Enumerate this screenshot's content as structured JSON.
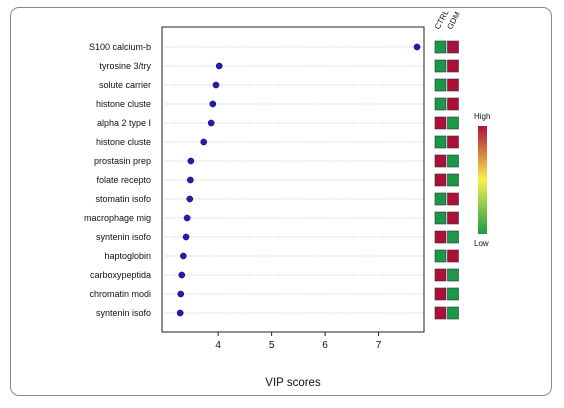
{
  "chart_data": {
    "type": "scatter",
    "subtype": "vip-dot-plot",
    "xlabel": "VIP scores",
    "xticks": [
      4,
      5,
      6,
      7
    ],
    "xlim": [
      2.95,
      7.85
    ],
    "grid": "horizontal dotted guide lines",
    "point_color": "#1f1fb0",
    "items": [
      {
        "label": "S100 calcium-b",
        "vip": 7.72,
        "heat": [
          "green",
          "red"
        ]
      },
      {
        "label": "tyrosine 3/try",
        "vip": 4.02,
        "heat": [
          "green",
          "red"
        ]
      },
      {
        "label": "solute carrier",
        "vip": 3.96,
        "heat": [
          "green",
          "red"
        ]
      },
      {
        "label": "histone cluste",
        "vip": 3.9,
        "heat": [
          "green",
          "red"
        ]
      },
      {
        "label": "alpha 2 type I",
        "vip": 3.87,
        "heat": [
          "red",
          "green"
        ]
      },
      {
        "label": "histone cluste",
        "vip": 3.73,
        "heat": [
          "green",
          "red"
        ]
      },
      {
        "label": "prostasin prep",
        "vip": 3.49,
        "heat": [
          "red",
          "green"
        ]
      },
      {
        "label": "folate recepto",
        "vip": 3.48,
        "heat": [
          "red",
          "green"
        ]
      },
      {
        "label": "stomatin isofo",
        "vip": 3.47,
        "heat": [
          "green",
          "red"
        ]
      },
      {
        "label": "macrophage mig",
        "vip": 3.42,
        "heat": [
          "green",
          "red"
        ]
      },
      {
        "label": "syntenin isofo",
        "vip": 3.4,
        "heat": [
          "red",
          "green"
        ]
      },
      {
        "label": "haptoglobin",
        "vip": 3.35,
        "heat": [
          "green",
          "red"
        ]
      },
      {
        "label": "carboxypeptida",
        "vip": 3.32,
        "heat": [
          "red",
          "green"
        ]
      },
      {
        "label": "chromatin modi",
        "vip": 3.3,
        "heat": [
          "red",
          "green"
        ]
      },
      {
        "label": "syntenin isofo",
        "vip": 3.29,
        "heat": [
          "red",
          "green"
        ]
      }
    ],
    "heatmap_columns": [
      "CTRL",
      "GDM"
    ],
    "colors": {
      "high": "#b0103a",
      "mid": "#f7f24a",
      "low": "#1a9c4a"
    },
    "legend": {
      "high_label": "High",
      "low_label": "Low",
      "placement": "right"
    }
  }
}
